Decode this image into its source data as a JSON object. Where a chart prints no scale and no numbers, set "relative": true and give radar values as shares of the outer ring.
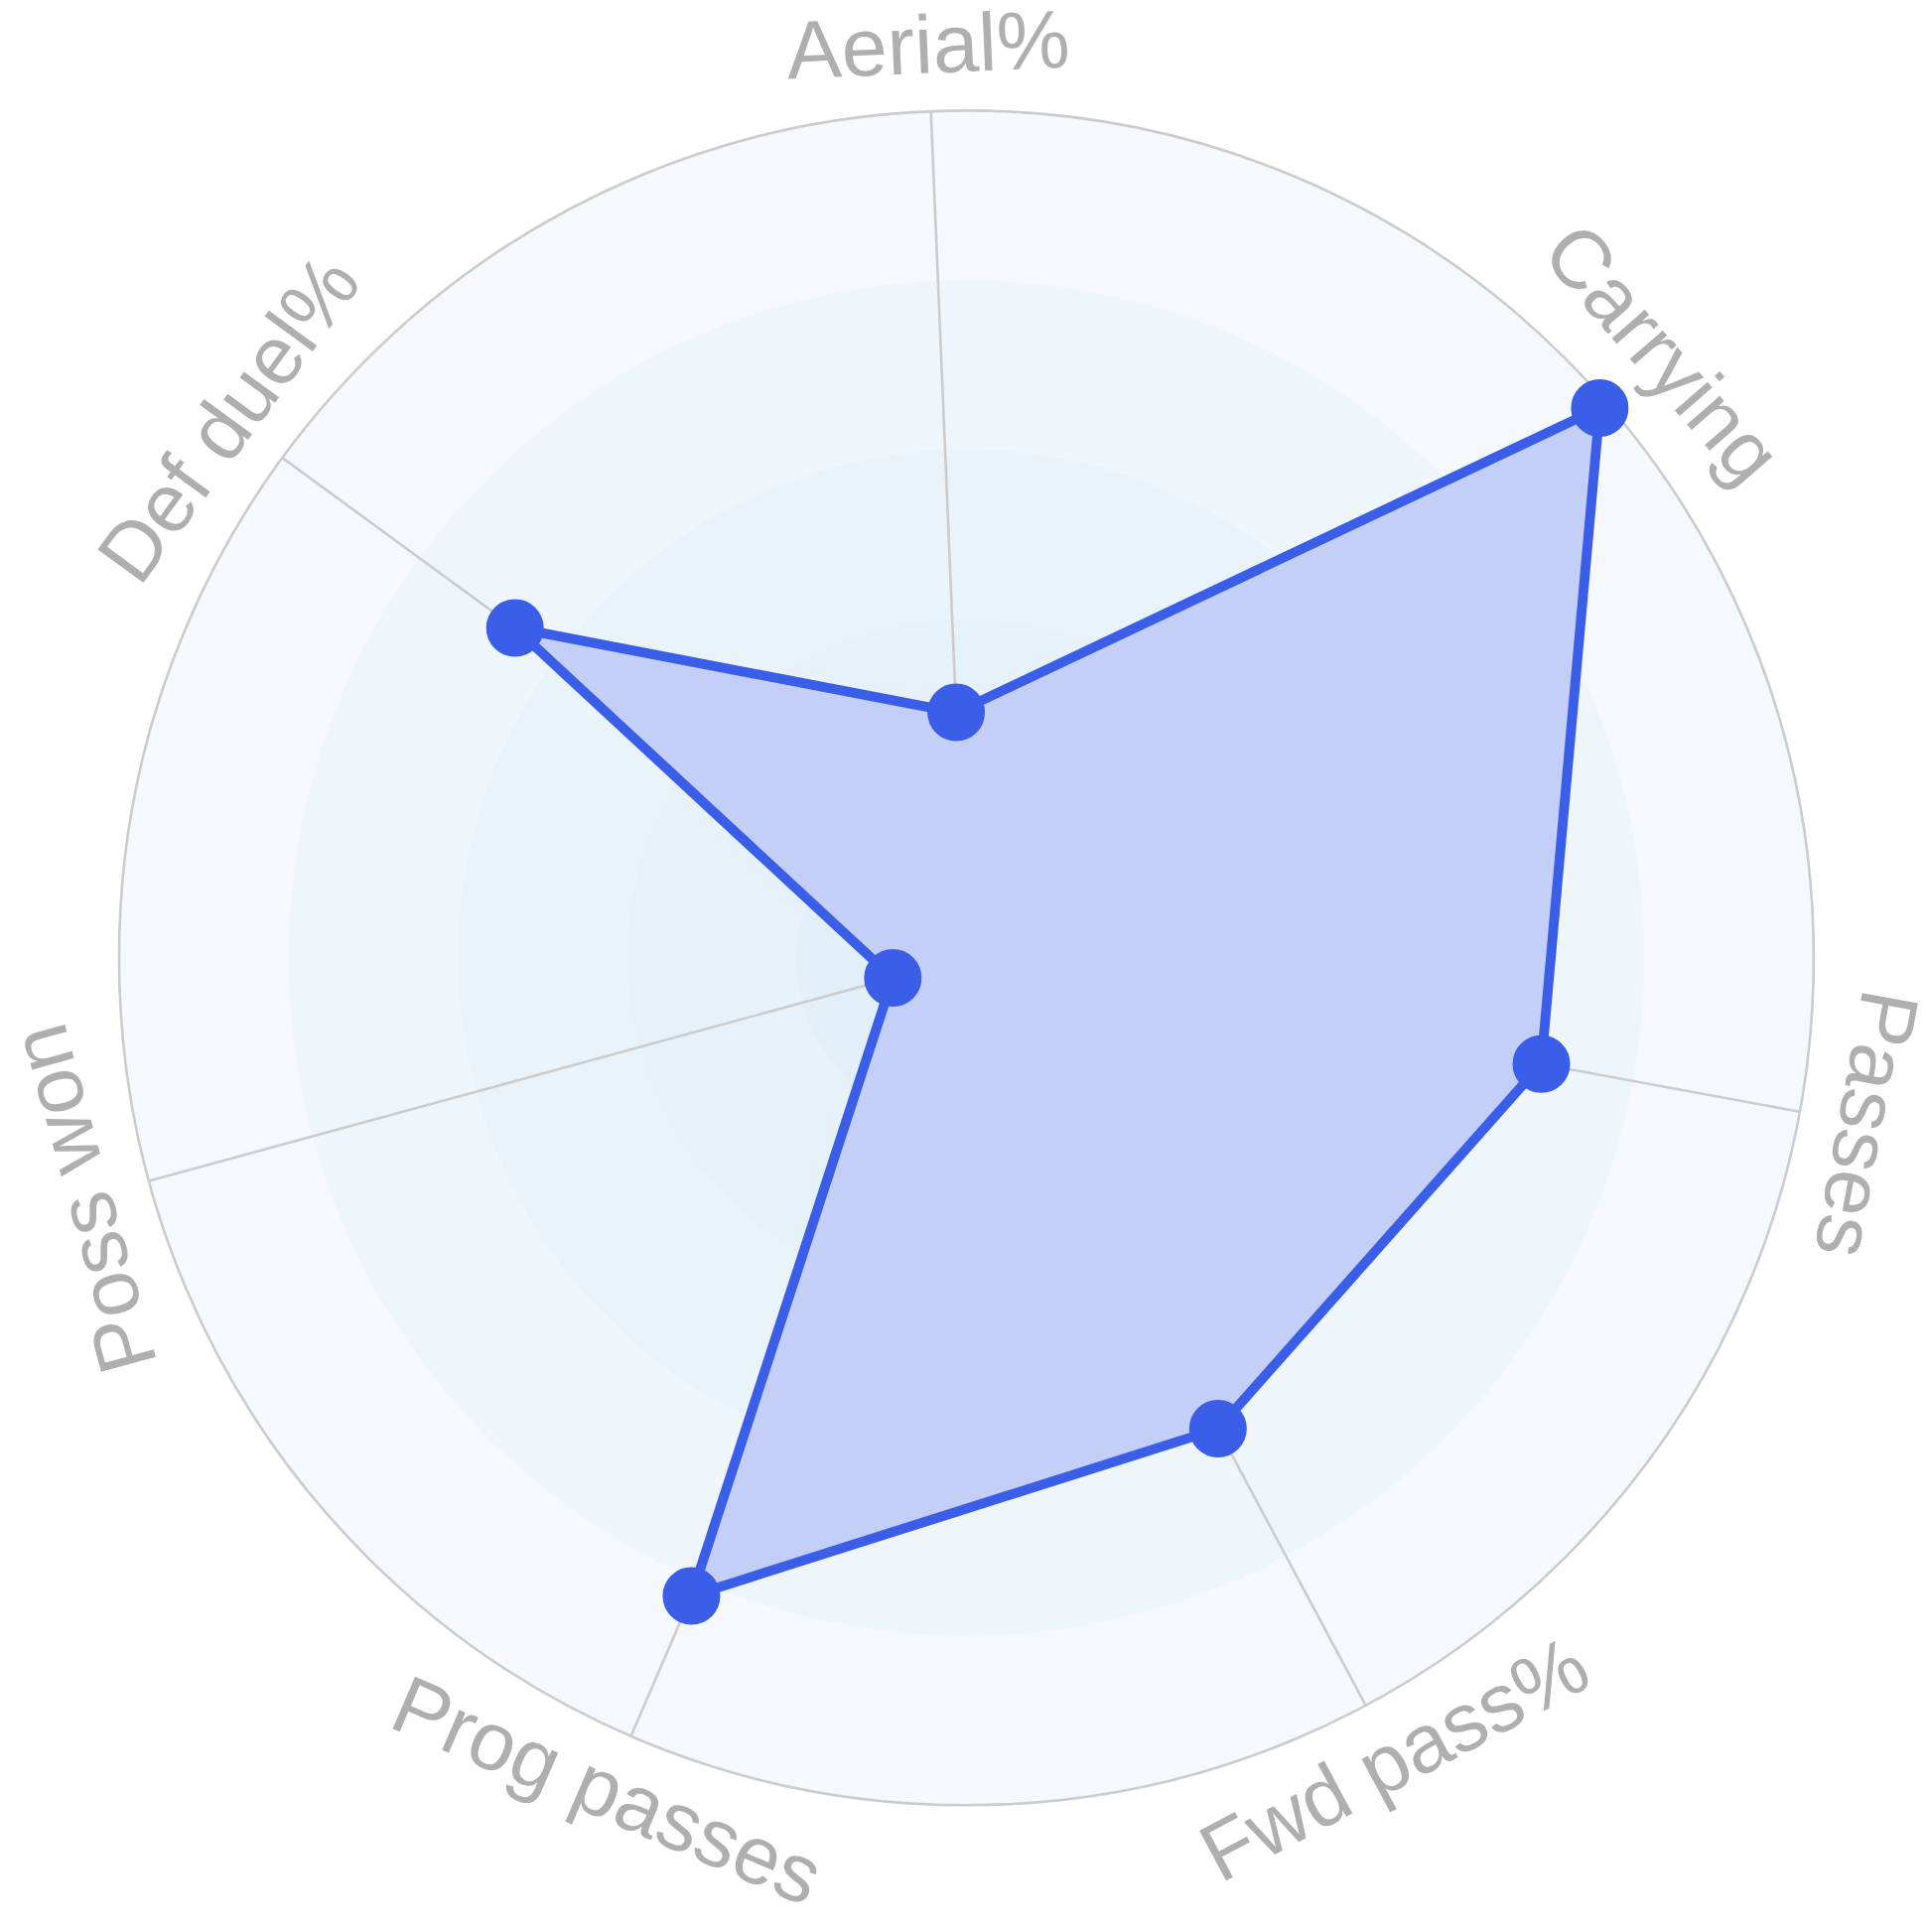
{
  "chart_data": {
    "type": "radar",
    "relative": true,
    "grid": true,
    "marker": "circle",
    "categories": [
      "Aerial%",
      "Carrying",
      "Passes",
      "Fwd pass%",
      "Prog passes",
      "Poss won",
      "Def duel%"
    ],
    "series": [
      {
        "color": "#3a5ee8",
        "values": [
          0.29,
          0.99,
          0.69,
          0.63,
          0.82,
          0.09,
          0.66
        ]
      }
    ]
  }
}
